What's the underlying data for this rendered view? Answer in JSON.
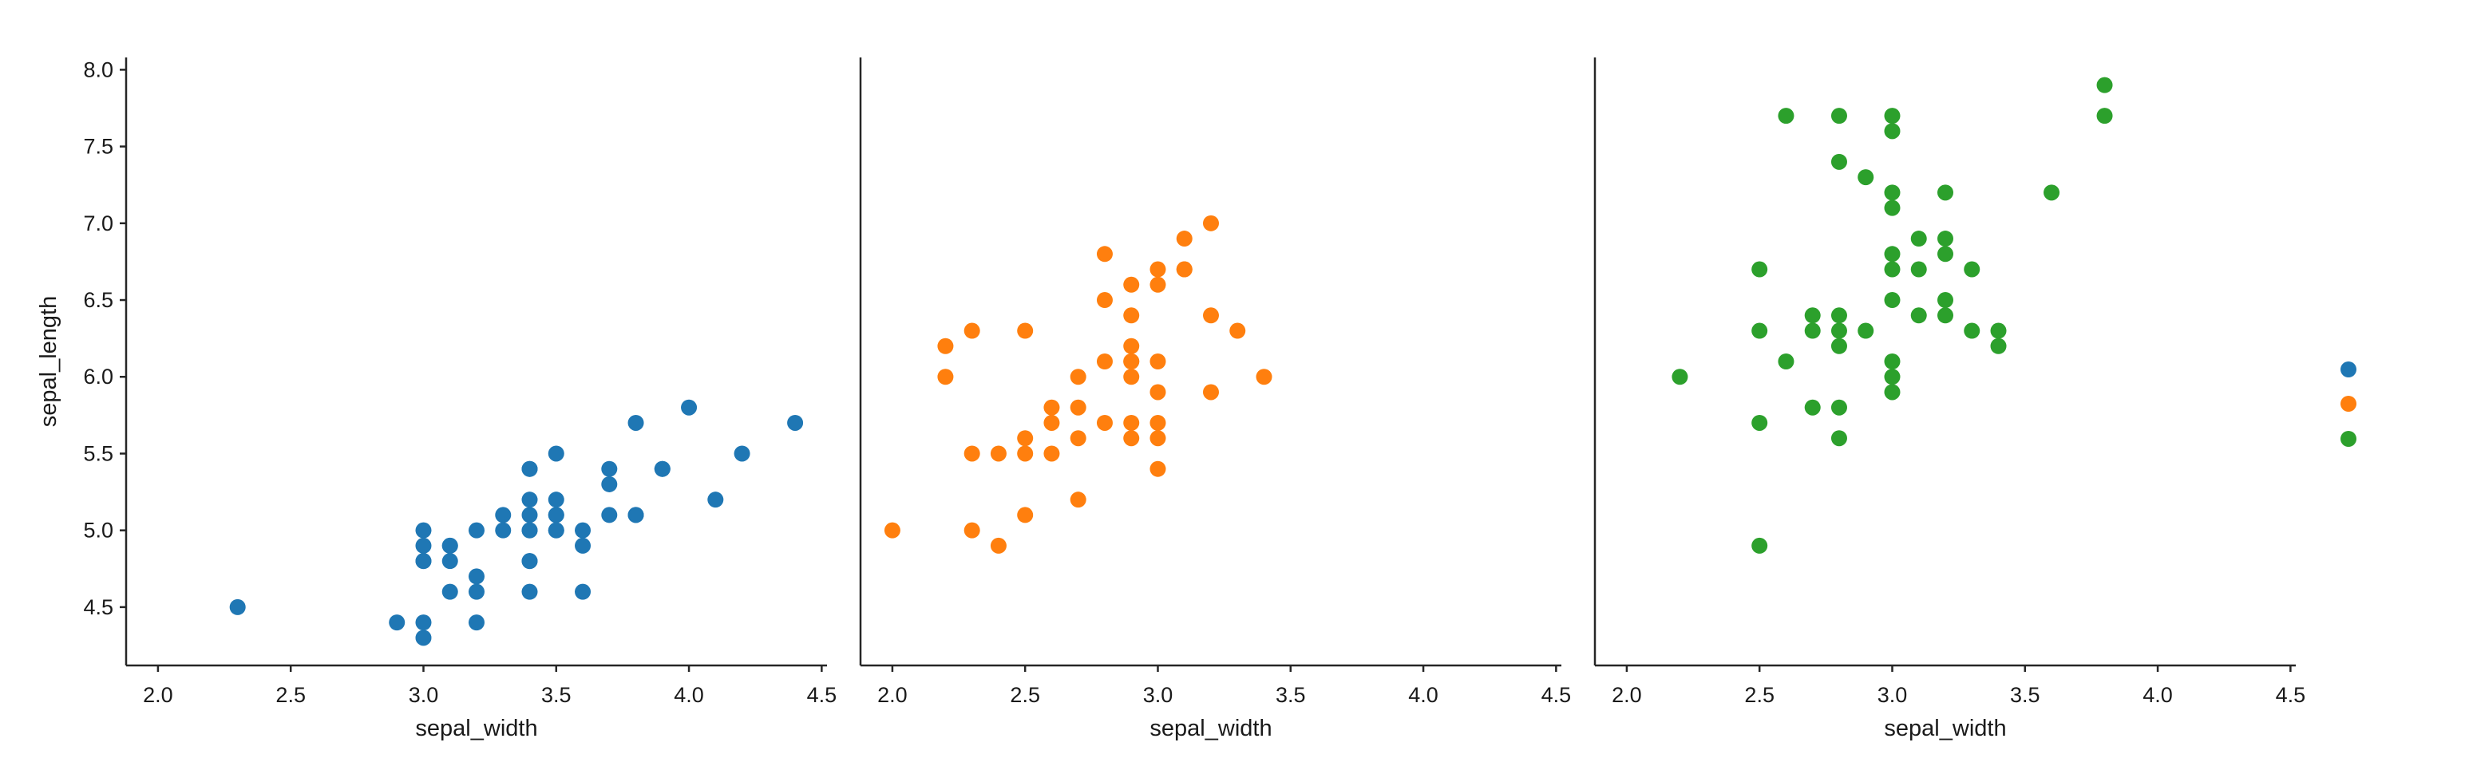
{
  "chart_data": [
    {
      "type": "scatter",
      "xlabel": "sepal_width",
      "ylabel": "sepal_length",
      "xlim": [
        1.88,
        4.52
      ],
      "ylim": [
        4.12,
        8.08
      ],
      "xticks": [
        "2.0",
        "2.5",
        "3.0",
        "3.5",
        "4.0",
        "4.5"
      ],
      "yticks": [
        "4.5",
        "5.0",
        "5.5",
        "6.0",
        "6.5",
        "7.0",
        "7.5",
        "8.0"
      ],
      "grid": false,
      "color": "#1f77b4",
      "points": [
        [
          3.0,
          4.3
        ],
        [
          3.0,
          4.4
        ],
        [
          3.2,
          4.4
        ],
        [
          2.9,
          4.4
        ],
        [
          2.3,
          4.5
        ],
        [
          3.1,
          4.6
        ],
        [
          3.4,
          4.6
        ],
        [
          3.6,
          4.6
        ],
        [
          3.2,
          4.6
        ],
        [
          3.2,
          4.7
        ],
        [
          3.0,
          4.8
        ],
        [
          3.4,
          4.8
        ],
        [
          3.0,
          4.8
        ],
        [
          3.1,
          4.8
        ],
        [
          3.4,
          4.8
        ],
        [
          3.1,
          4.9
        ],
        [
          3.0,
          4.9
        ],
        [
          3.6,
          4.9
        ],
        [
          3.1,
          4.9
        ],
        [
          3.6,
          5.0
        ],
        [
          3.4,
          5.0
        ],
        [
          3.0,
          5.0
        ],
        [
          3.4,
          5.0
        ],
        [
          3.2,
          5.0
        ],
        [
          3.5,
          5.0
        ],
        [
          3.3,
          5.0
        ],
        [
          3.5,
          5.0
        ],
        [
          3.5,
          5.1
        ],
        [
          3.5,
          5.1
        ],
        [
          3.8,
          5.1
        ],
        [
          3.7,
          5.1
        ],
        [
          3.3,
          5.1
        ],
        [
          3.8,
          5.1
        ],
        [
          3.4,
          5.1
        ],
        [
          3.4,
          5.2
        ],
        [
          4.1,
          5.2
        ],
        [
          3.5,
          5.2
        ],
        [
          3.7,
          5.3
        ],
        [
          3.9,
          5.4
        ],
        [
          3.7,
          5.4
        ],
        [
          3.4,
          5.4
        ],
        [
          3.9,
          5.4
        ],
        [
          3.4,
          5.4
        ],
        [
          3.5,
          5.5
        ],
        [
          4.2,
          5.5
        ],
        [
          4.4,
          5.7
        ],
        [
          3.8,
          5.7
        ],
        [
          4.0,
          5.8
        ]
      ]
    },
    {
      "type": "scatter",
      "xlabel": "sepal_width",
      "ylabel": "",
      "xlim": [
        1.88,
        4.52
      ],
      "ylim": [
        4.12,
        8.08
      ],
      "xticks": [
        "2.0",
        "2.5",
        "3.0",
        "3.5",
        "4.0",
        "4.5"
      ],
      "grid": false,
      "color": "#ff7f0e",
      "points": [
        [
          2.4,
          4.9
        ],
        [
          2.0,
          5.0
        ],
        [
          2.3,
          5.0
        ],
        [
          2.5,
          5.1
        ],
        [
          2.7,
          5.2
        ],
        [
          3.0,
          5.4
        ],
        [
          2.4,
          5.5
        ],
        [
          2.3,
          5.5
        ],
        [
          2.5,
          5.5
        ],
        [
          2.6,
          5.5
        ],
        [
          2.5,
          5.6
        ],
        [
          2.9,
          5.6
        ],
        [
          3.0,
          5.6
        ],
        [
          2.7,
          5.6
        ],
        [
          2.8,
          5.7
        ],
        [
          2.6,
          5.7
        ],
        [
          2.9,
          5.7
        ],
        [
          3.0,
          5.7
        ],
        [
          2.7,
          5.8
        ],
        [
          2.6,
          5.8
        ],
        [
          3.0,
          5.9
        ],
        [
          3.2,
          5.9
        ],
        [
          2.2,
          6.0
        ],
        [
          2.9,
          6.0
        ],
        [
          2.7,
          6.0
        ],
        [
          3.4,
          6.0
        ],
        [
          2.9,
          6.1
        ],
        [
          2.8,
          6.1
        ],
        [
          3.0,
          6.1
        ],
        [
          2.9,
          6.1
        ],
        [
          2.2,
          6.2
        ],
        [
          2.9,
          6.2
        ],
        [
          2.3,
          6.3
        ],
        [
          3.3,
          6.3
        ],
        [
          2.5,
          6.3
        ],
        [
          3.2,
          6.4
        ],
        [
          2.9,
          6.4
        ],
        [
          2.8,
          6.5
        ],
        [
          3.0,
          6.6
        ],
        [
          2.9,
          6.6
        ],
        [
          3.1,
          6.7
        ],
        [
          3.0,
          6.7
        ],
        [
          3.1,
          6.7
        ],
        [
          2.8,
          6.8
        ],
        [
          3.1,
          6.9
        ],
        [
          3.2,
          7.0
        ]
      ]
    },
    {
      "type": "scatter",
      "xlabel": "sepal_width",
      "ylabel": "",
      "xlim": [
        1.88,
        4.52
      ],
      "ylim": [
        4.12,
        8.08
      ],
      "xticks": [
        "2.0",
        "2.5",
        "3.0",
        "3.5",
        "4.0",
        "4.5"
      ],
      "grid": false,
      "color": "#2ca02c",
      "points": [
        [
          2.5,
          4.9
        ],
        [
          2.8,
          5.6
        ],
        [
          2.5,
          5.7
        ],
        [
          2.8,
          5.8
        ],
        [
          2.7,
          5.8
        ],
        [
          3.0,
          5.9
        ],
        [
          2.2,
          6.0
        ],
        [
          3.0,
          6.0
        ],
        [
          3.0,
          6.1
        ],
        [
          2.6,
          6.1
        ],
        [
          2.8,
          6.2
        ],
        [
          3.4,
          6.2
        ],
        [
          2.5,
          6.3
        ],
        [
          2.9,
          6.3
        ],
        [
          2.7,
          6.3
        ],
        [
          3.3,
          6.3
        ],
        [
          2.8,
          6.3
        ],
        [
          3.4,
          6.3
        ],
        [
          2.8,
          6.4
        ],
        [
          3.2,
          6.4
        ],
        [
          3.1,
          6.4
        ],
        [
          2.7,
          6.4
        ],
        [
          3.0,
          6.5
        ],
        [
          3.2,
          6.5
        ],
        [
          2.5,
          6.7
        ],
        [
          3.0,
          6.7
        ],
        [
          3.3,
          6.7
        ],
        [
          3.1,
          6.7
        ],
        [
          3.0,
          6.8
        ],
        [
          3.2,
          6.8
        ],
        [
          3.1,
          6.9
        ],
        [
          3.2,
          6.9
        ],
        [
          3.0,
          7.1
        ],
        [
          3.6,
          7.2
        ],
        [
          3.0,
          7.2
        ],
        [
          3.2,
          7.2
        ],
        [
          2.9,
          7.3
        ],
        [
          2.8,
          7.4
        ],
        [
          3.0,
          7.6
        ],
        [
          2.6,
          7.7
        ],
        [
          3.8,
          7.7
        ],
        [
          2.8,
          7.7
        ],
        [
          3.0,
          7.7
        ],
        [
          3.8,
          7.9
        ]
      ]
    }
  ],
  "legend": {
    "placement": "right",
    "markers": [
      "#1f77b4",
      "#ff7f0e",
      "#2ca02c"
    ]
  }
}
